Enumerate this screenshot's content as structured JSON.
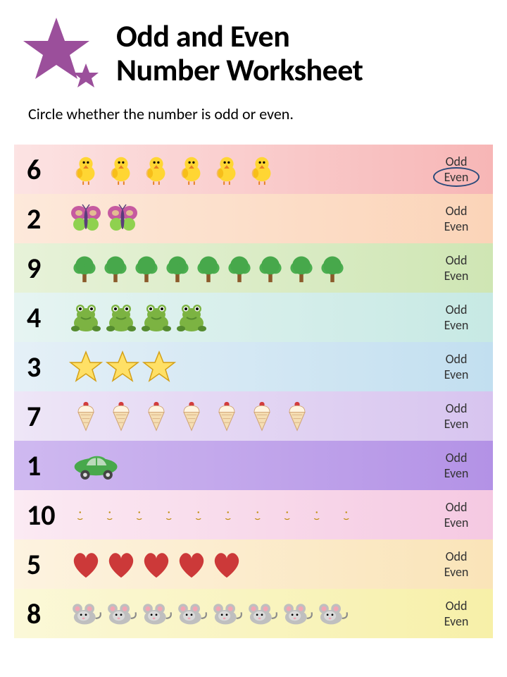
{
  "title_line1": "Odd and Even",
  "title_line2": "Number Worksheet",
  "instruction": "Circle whether the number is odd or even.",
  "odd_label": "Odd",
  "even_label": "Even",
  "logo_color": "#9b4f9b",
  "circle_color": "#2a4a7a",
  "rows": [
    {
      "number": "6",
      "count": 6,
      "icon": "chick",
      "bg_from": "#fce3e3",
      "bg_to": "#f7b6b6",
      "circled": "even"
    },
    {
      "number": "2",
      "count": 2,
      "icon": "butterfly",
      "bg_from": "#fde9db",
      "bg_to": "#fbd4b8",
      "circled": null
    },
    {
      "number": "9",
      "count": 9,
      "icon": "tree",
      "bg_from": "#e7f2d9",
      "bg_to": "#cfe6b4",
      "circled": null
    },
    {
      "number": "4",
      "count": 4,
      "icon": "frog",
      "bg_from": "#e6f4f2",
      "bg_to": "#c7e9e4",
      "circled": null
    },
    {
      "number": "3",
      "count": 3,
      "icon": "star",
      "bg_from": "#e5f0f7",
      "bg_to": "#c2dff0",
      "circled": null
    },
    {
      "number": "7",
      "count": 7,
      "icon": "icecream",
      "bg_from": "#eee6f7",
      "bg_to": "#d7c4ef",
      "circled": null
    },
    {
      "number": "1",
      "count": 1,
      "icon": "car",
      "bg_from": "#cfb9f0",
      "bg_to": "#b392e6",
      "circled": null
    },
    {
      "number": "10",
      "count": 10,
      "icon": "moon",
      "bg_from": "#fbeaf3",
      "bg_to": "#f5c9e2",
      "circled": null
    },
    {
      "number": "5",
      "count": 5,
      "icon": "heart",
      "bg_from": "#fdf3e0",
      "bg_to": "#fae4b8",
      "circled": null
    },
    {
      "number": "8",
      "count": 8,
      "icon": "mouse",
      "bg_from": "#fbf8d8",
      "bg_to": "#f7f0a8",
      "circled": null
    }
  ],
  "icon_defs": {
    "chick": {
      "primary": "#ffd633",
      "secondary": "#f0a500",
      "accent": "#e67e22"
    },
    "butterfly": {
      "primary": "#c65aa0",
      "secondary": "#8fd14f",
      "accent": "#5a3d7a"
    },
    "tree": {
      "primary": "#4caf50",
      "secondary": "#8b5a2b",
      "accent": "#2e7d32"
    },
    "frog": {
      "primary": "#7cb342",
      "secondary": "#558b2f",
      "accent": "#ffffff"
    },
    "star": {
      "primary": "#ffe066",
      "secondary": "#f0c419",
      "accent": "#d4a017"
    },
    "icecream": {
      "primary": "#f5deb3",
      "secondary": "#d2a679",
      "accent": "#d23c3c"
    },
    "car": {
      "primary": "#4caf50",
      "secondary": "#2e7d32",
      "accent": "#444444"
    },
    "moon": {
      "primary": "#f0c419",
      "secondary": "#d4a017",
      "accent": "#c08f10"
    },
    "heart": {
      "primary": "#d23c3c",
      "secondary": "#a82828",
      "accent": "#ffffff"
    },
    "mouse": {
      "primary": "#bfbfbf",
      "secondary": "#8a8a8a",
      "accent": "#f2a6b3"
    }
  }
}
